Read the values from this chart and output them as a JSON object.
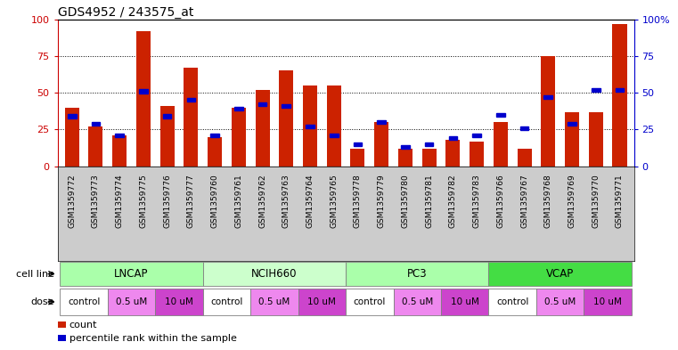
{
  "title": "GDS4952 / 243575_at",
  "samples": [
    "GSM1359772",
    "GSM1359773",
    "GSM1359774",
    "GSM1359775",
    "GSM1359776",
    "GSM1359777",
    "GSM1359760",
    "GSM1359761",
    "GSM1359762",
    "GSM1359763",
    "GSM1359764",
    "GSM1359765",
    "GSM1359778",
    "GSM1359779",
    "GSM1359780",
    "GSM1359781",
    "GSM1359782",
    "GSM1359783",
    "GSM1359766",
    "GSM1359767",
    "GSM1359768",
    "GSM1359769",
    "GSM1359770",
    "GSM1359771"
  ],
  "count_values": [
    40,
    27,
    21,
    92,
    41,
    67,
    20,
    40,
    52,
    65,
    55,
    55,
    12,
    30,
    12,
    12,
    18,
    17,
    30,
    12,
    75,
    37,
    37,
    97
  ],
  "percentile_values": [
    34,
    29,
    21,
    51,
    34,
    45,
    21,
    39,
    42,
    41,
    27,
    21,
    15,
    30,
    13,
    15,
    19,
    21,
    35,
    26,
    47,
    29,
    52,
    52
  ],
  "cell_line_data": [
    {
      "name": "LNCAP",
      "start": 0,
      "end": 6,
      "color": "#aaffaa"
    },
    {
      "name": "NCIH660",
      "start": 6,
      "end": 12,
      "color": "#ccffcc"
    },
    {
      "name": "PC3",
      "start": 12,
      "end": 18,
      "color": "#aaffaa"
    },
    {
      "name": "VCAP",
      "start": 18,
      "end": 24,
      "color": "#44dd44"
    }
  ],
  "dose_data": [
    {
      "name": "control",
      "start": 0,
      "end": 2,
      "color": "#ffffff"
    },
    {
      "name": "0.5 uM",
      "start": 2,
      "end": 4,
      "color": "#ee88ee"
    },
    {
      "name": "10 uM",
      "start": 4,
      "end": 6,
      "color": "#cc44cc"
    },
    {
      "name": "control",
      "start": 6,
      "end": 8,
      "color": "#ffffff"
    },
    {
      "name": "0.5 uM",
      "start": 8,
      "end": 10,
      "color": "#ee88ee"
    },
    {
      "name": "10 uM",
      "start": 10,
      "end": 12,
      "color": "#cc44cc"
    },
    {
      "name": "control",
      "start": 12,
      "end": 14,
      "color": "#ffffff"
    },
    {
      "name": "0.5 uM",
      "start": 14,
      "end": 16,
      "color": "#ee88ee"
    },
    {
      "name": "10 uM",
      "start": 16,
      "end": 18,
      "color": "#cc44cc"
    },
    {
      "name": "control",
      "start": 18,
      "end": 20,
      "color": "#ffffff"
    },
    {
      "name": "0.5 uM",
      "start": 20,
      "end": 22,
      "color": "#ee88ee"
    },
    {
      "name": "10 uM",
      "start": 22,
      "end": 24,
      "color": "#cc44cc"
    }
  ],
  "bar_color": "#cc2200",
  "percentile_color": "#0000cc",
  "plot_bg_color": "#ffffff",
  "label_bg_color": "#cccccc",
  "ylim": [
    0,
    100
  ],
  "yticks": [
    0,
    25,
    50,
    75,
    100
  ],
  "grid_style": ":",
  "left_tick_color": "#cc0000",
  "right_tick_color": "#0000cc"
}
